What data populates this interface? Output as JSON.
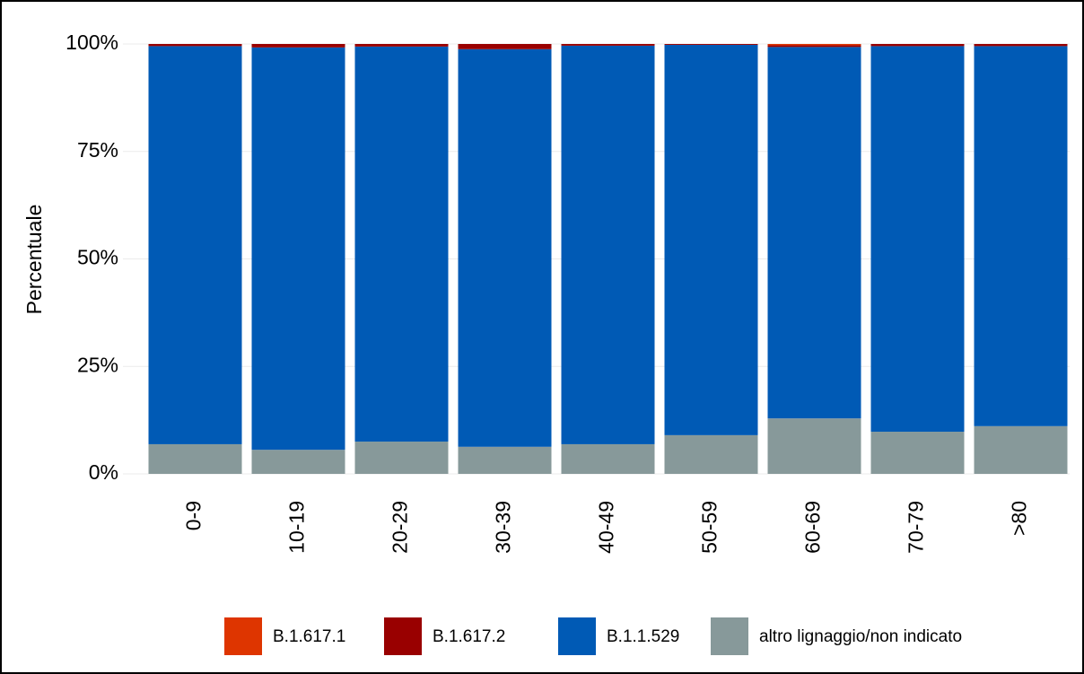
{
  "chart_data": {
    "type": "stacked_bar",
    "y_label": "Percentuale",
    "categories": [
      "0-9",
      "10-19",
      "20-29",
      "30-39",
      "40-49",
      "50-59",
      "60-69",
      "70-79",
      ">80"
    ],
    "series": [
      {
        "name": "altro lignaggio/non indicato",
        "color": "#87999a",
        "values": [
          6.9,
          5.6,
          7.5,
          6.3,
          6.9,
          9.0,
          12.9,
          9.8,
          11.1
        ]
      },
      {
        "name": "B.1.1.529",
        "color": "#005ab5",
        "values": [
          92.6,
          93.6,
          91.9,
          92.5,
          92.7,
          90.8,
          86.4,
          89.7,
          88.4
        ]
      },
      {
        "name": "B.1.617.2",
        "color": "#990000",
        "values": [
          0.5,
          0.8,
          0.6,
          1.2,
          0.4,
          0.2,
          0.4,
          0.5,
          0.5
        ]
      },
      {
        "name": "B.1.617.1",
        "color": "#de3500",
        "values": [
          0,
          0,
          0,
          0,
          0,
          0,
          0.3,
          0,
          0
        ]
      }
    ],
    "legend_order": [
      3,
      2,
      1,
      0
    ],
    "ylim": [
      0,
      100
    ],
    "yticks": [
      {
        "value": 0,
        "label": "0%"
      },
      {
        "value": 25,
        "label": "25%"
      },
      {
        "value": 50,
        "label": "50%"
      },
      {
        "value": 75,
        "label": "75%"
      },
      {
        "value": 100,
        "label": "100%"
      }
    ],
    "grid": true
  }
}
